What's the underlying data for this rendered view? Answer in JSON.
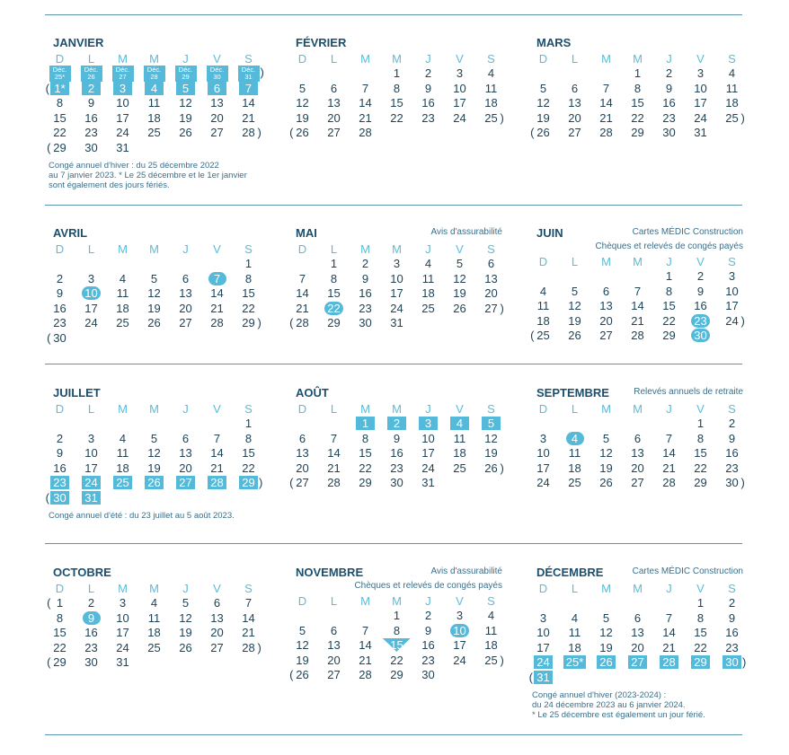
{
  "days_of_week": [
    "D",
    "L",
    "M",
    "M",
    "J",
    "V",
    "S"
  ],
  "colors": {
    "accent": "#55b9d9",
    "title": "#1b4f6e",
    "rule": "#5f93ab"
  },
  "months": [
    {
      "name": "JANVIER",
      "weeks": [
        {
          "days": [
            {
              "t": "Déc.\n25*",
              "m": "box small"
            },
            {
              "t": "Déc.\n26",
              "m": "box small"
            },
            {
              "t": "Déc.\n27",
              "m": "box small"
            },
            {
              "t": "Déc.\n28",
              "m": "box small"
            },
            {
              "t": "Déc.\n29",
              "m": "box small"
            },
            {
              "t": "Déc.\n30",
              "m": "box small"
            },
            {
              "t": "Déc.\n31",
              "m": "box small"
            }
          ],
          "post": ")"
        },
        {
          "pre": "(",
          "days": [
            {
              "t": "1*",
              "m": "box"
            },
            {
              "t": "2",
              "m": "box"
            },
            {
              "t": "3",
              "m": "box"
            },
            {
              "t": "4",
              "m": "box"
            },
            {
              "t": "5",
              "m": "box"
            },
            {
              "t": "6",
              "m": "box"
            },
            {
              "t": "7",
              "m": "box"
            }
          ]
        },
        {
          "days": [
            "8",
            "9",
            "10",
            "11",
            "12",
            "13",
            "14"
          ]
        },
        {
          "days": [
            "15",
            "16",
            "17",
            "18",
            "19",
            "20",
            "21"
          ]
        },
        {
          "days": [
            "22",
            "23",
            "24",
            "25",
            "26",
            "27",
            "28"
          ],
          "post": ")"
        },
        {
          "pre": "(",
          "days": [
            "29",
            "30",
            "31",
            "",
            "",
            "",
            ""
          ]
        }
      ],
      "footnote": "Congé annuel d'hiver : du 25 décembre 2022\nau 7 janvier 2023. * Le 25 décembre et le 1er janvier\nsont également des jours fériés."
    },
    {
      "name": "FÉVRIER",
      "weeks": [
        {
          "days": [
            "",
            "",
            "",
            "1",
            "2",
            "3",
            "4"
          ]
        },
        {
          "days": [
            "5",
            "6",
            "7",
            "8",
            "9",
            "10",
            "11"
          ]
        },
        {
          "days": [
            "12",
            "13",
            "14",
            "15",
            "16",
            "17",
            "18"
          ]
        },
        {
          "days": [
            "19",
            "20",
            "21",
            "22",
            "23",
            "24",
            "25"
          ],
          "post": ")"
        },
        {
          "pre": "(",
          "days": [
            "26",
            "27",
            "28",
            "",
            "",
            "",
            ""
          ]
        }
      ]
    },
    {
      "name": "MARS",
      "weeks": [
        {
          "days": [
            "",
            "",
            "",
            "1",
            "2",
            "3",
            "4"
          ]
        },
        {
          "days": [
            "5",
            "6",
            "7",
            "8",
            "9",
            "10",
            "11"
          ]
        },
        {
          "days": [
            "12",
            "13",
            "14",
            "15",
            "16",
            "17",
            "18"
          ]
        },
        {
          "days": [
            "19",
            "20",
            "21",
            "22",
            "23",
            "24",
            "25"
          ],
          "post": ")"
        },
        {
          "pre": "(",
          "days": [
            "26",
            "27",
            "28",
            "29",
            "30",
            "31",
            ""
          ]
        }
      ]
    },
    {
      "name": "AVRIL",
      "weeks": [
        {
          "days": [
            "",
            "",
            "",
            "",
            "",
            "",
            "1"
          ]
        },
        {
          "days": [
            "2",
            "3",
            "4",
            "5",
            "6",
            {
              "t": "7",
              "m": "circle"
            },
            "8"
          ]
        },
        {
          "days": [
            "9",
            {
              "t": "10",
              "m": "circle"
            },
            "11",
            "12",
            "13",
            "14",
            "15"
          ]
        },
        {
          "days": [
            "16",
            "17",
            "18",
            "19",
            "20",
            "21",
            "22"
          ]
        },
        {
          "days": [
            "23",
            "24",
            "25",
            "26",
            "27",
            "28",
            "29"
          ],
          "post": ")"
        },
        {
          "pre": "(",
          "days": [
            "30",
            "",
            "",
            "",
            "",
            "",
            ""
          ]
        }
      ]
    },
    {
      "name": "MAI",
      "note1": "Avis d'assurabilité",
      "weeks": [
        {
          "days": [
            "",
            "1",
            "2",
            "3",
            "4",
            "5",
            "6"
          ]
        },
        {
          "days": [
            "7",
            "8",
            "9",
            "10",
            "11",
            "12",
            "13"
          ]
        },
        {
          "days": [
            "14",
            "15",
            "16",
            "17",
            "18",
            "19",
            "20"
          ]
        },
        {
          "days": [
            "21",
            {
              "t": "22",
              "m": "circle"
            },
            "23",
            "24",
            "25",
            "26",
            "27"
          ],
          "post": ")"
        },
        {
          "pre": "(",
          "days": [
            "28",
            "29",
            "30",
            "31",
            "",
            "",
            ""
          ]
        }
      ]
    },
    {
      "name": "JUIN",
      "note1": "Cartes MÉDIC Construction",
      "note2": "Chèques et relevés de congés payés",
      "weeks": [
        {
          "days": [
            "",
            "",
            "",
            "",
            "1",
            "2",
            "3"
          ]
        },
        {
          "days": [
            "4",
            "5",
            "6",
            "7",
            "8",
            "9",
            "10"
          ]
        },
        {
          "days": [
            "11",
            "12",
            "13",
            "14",
            "15",
            "16",
            "17"
          ]
        },
        {
          "days": [
            "18",
            "19",
            "20",
            "21",
            "22",
            {
              "t": "23",
              "m": "circle"
            },
            "24"
          ],
          "post": ")"
        },
        {
          "pre": "(",
          "days": [
            "25",
            "26",
            "27",
            "28",
            "29",
            {
              "t": "30",
              "m": "circle"
            },
            ""
          ]
        }
      ]
    },
    {
      "name": "JUILLET",
      "weeks": [
        {
          "days": [
            "",
            "",
            "",
            "",
            "",
            "",
            "1"
          ]
        },
        {
          "days": [
            "2",
            "3",
            "4",
            "5",
            "6",
            "7",
            "8"
          ]
        },
        {
          "days": [
            "9",
            "10",
            "11",
            "12",
            "13",
            "14",
            "15"
          ]
        },
        {
          "days": [
            "16",
            "17",
            "18",
            "19",
            "20",
            "21",
            "22"
          ]
        },
        {
          "days": [
            {
              "t": "23",
              "m": "box"
            },
            {
              "t": "24",
              "m": "box"
            },
            {
              "t": "25",
              "m": "box"
            },
            {
              "t": "26",
              "m": "box"
            },
            {
              "t": "27",
              "m": "box"
            },
            {
              "t": "28",
              "m": "box"
            },
            {
              "t": "29",
              "m": "box"
            }
          ],
          "post": ")"
        },
        {
          "pre": "(",
          "days": [
            {
              "t": "30",
              "m": "box"
            },
            {
              "t": "31",
              "m": "box"
            },
            "",
            "",
            "",
            "",
            ""
          ]
        }
      ],
      "footnote": "Congé annuel d'été : du 23 juillet au 5 août 2023."
    },
    {
      "name": "AOÛT",
      "weeks": [
        {
          "days": [
            "",
            "",
            {
              "t": "1",
              "m": "box"
            },
            {
              "t": "2",
              "m": "box"
            },
            {
              "t": "3",
              "m": "box"
            },
            {
              "t": "4",
              "m": "box"
            },
            {
              "t": "5",
              "m": "box"
            }
          ]
        },
        {
          "days": [
            "6",
            "7",
            "8",
            "9",
            "10",
            "11",
            "12"
          ]
        },
        {
          "days": [
            "13",
            "14",
            "15",
            "16",
            "17",
            "18",
            "19"
          ]
        },
        {
          "days": [
            "20",
            "21",
            "22",
            "23",
            "24",
            "25",
            "26"
          ],
          "post": ")"
        },
        {
          "pre": "(",
          "days": [
            "27",
            "28",
            "29",
            "30",
            "31",
            "",
            ""
          ]
        }
      ]
    },
    {
      "name": "SEPTEMBRE",
      "note1": "Relevés annuels de retraite",
      "weeks": [
        {
          "days": [
            "",
            "",
            "",
            "",
            "",
            "1",
            "2"
          ]
        },
        {
          "days": [
            "3",
            {
              "t": "4",
              "m": "circle"
            },
            "5",
            "6",
            "7",
            "8",
            "9"
          ]
        },
        {
          "days": [
            "10",
            "11",
            "12",
            "13",
            "14",
            "15",
            "16"
          ]
        },
        {
          "days": [
            "17",
            "18",
            "19",
            "20",
            "21",
            "22",
            "23"
          ]
        },
        {
          "days": [
            "24",
            "25",
            "26",
            "27",
            "28",
            "29",
            "30"
          ],
          "post": ")"
        }
      ]
    },
    {
      "name": "OCTOBRE",
      "weeks": [
        {
          "pre": "(",
          "days": [
            "1",
            "2",
            "3",
            "4",
            "5",
            "6",
            "7"
          ]
        },
        {
          "days": [
            "8",
            {
              "t": "9",
              "m": "circle"
            },
            "10",
            "11",
            "12",
            "13",
            "14"
          ]
        },
        {
          "days": [
            "15",
            "16",
            "17",
            "18",
            "19",
            "20",
            "21"
          ]
        },
        {
          "days": [
            "22",
            "23",
            "24",
            "25",
            "26",
            "27",
            "28"
          ],
          "post": ")"
        },
        {
          "pre": "(",
          "days": [
            "29",
            "30",
            "31",
            "",
            "",
            "",
            ""
          ]
        }
      ]
    },
    {
      "name": "NOVEMBRE",
      "note1": "Avis d'assurabilité",
      "note2": "Chèques et relevés de congés payés",
      "weeks": [
        {
          "days": [
            "",
            "",
            "",
            "1",
            "2",
            "3",
            "4"
          ]
        },
        {
          "days": [
            "5",
            "6",
            "7",
            "8",
            "9",
            {
              "t": "10",
              "m": "circle"
            },
            "11"
          ]
        },
        {
          "days": [
            "12",
            "13",
            "14",
            {
              "t": "15",
              "m": "tri"
            },
            "16",
            "17",
            "18"
          ]
        },
        {
          "days": [
            "19",
            "20",
            "21",
            "22",
            "23",
            "24",
            "25"
          ],
          "post": ")"
        },
        {
          "pre": "(",
          "days": [
            "26",
            "27",
            "28",
            "29",
            "30",
            "",
            ""
          ]
        }
      ]
    },
    {
      "name": "DÉCEMBRE",
      "note1": "Cartes MÉDIC Construction",
      "weeks": [
        {
          "days": [
            "",
            "",
            "",
            "",
            "",
            "1",
            "2"
          ]
        },
        {
          "days": [
            "3",
            "4",
            "5",
            "6",
            "7",
            "8",
            "9"
          ]
        },
        {
          "days": [
            "10",
            "11",
            "12",
            "13",
            "14",
            "15",
            "16"
          ]
        },
        {
          "days": [
            "17",
            "18",
            "19",
            "20",
            "21",
            "22",
            "23"
          ]
        },
        {
          "days": [
            {
              "t": "24",
              "m": "box"
            },
            {
              "t": "25*",
              "m": "box"
            },
            {
              "t": "26",
              "m": "box"
            },
            {
              "t": "27",
              "m": "box"
            },
            {
              "t": "28",
              "m": "box"
            },
            {
              "t": "29",
              "m": "box"
            },
            {
              "t": "30",
              "m": "box"
            }
          ],
          "post": ")"
        },
        {
          "pre": "(",
          "days": [
            {
              "t": "31",
              "m": "box"
            },
            "",
            "",
            "",
            "",
            "",
            ""
          ]
        }
      ],
      "footnote": "Congé annuel d'hiver (2023-2024) :\ndu 24 décembre 2023 au 6 janvier 2024.\n* Le 25 décembre est également un jour férié."
    }
  ]
}
